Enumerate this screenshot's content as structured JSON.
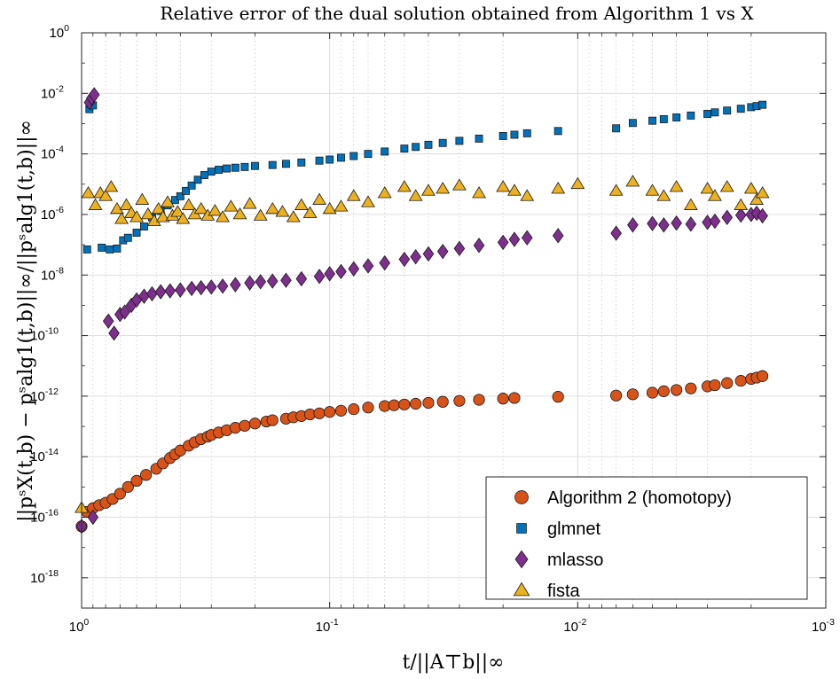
{
  "chart_data": {
    "type": "scatter",
    "title": "Relative error of the dual solution obtained from Algorithm 1 vs X",
    "xlabel": "t/||A⊤b||∞",
    "ylabel": "||pˢX(t,b) − pˢalg1(t,b)||∞/||pˢalg1(t,b)||∞",
    "x_scale": "log",
    "y_scale": "log",
    "x_reversed": true,
    "xlim": [
      1,
      0.001
    ],
    "ylim": [
      1e-19,
      1
    ],
    "grid": true,
    "legend_position": "bottom-right",
    "x_ticks": [
      {
        "base": "10",
        "exp": "0"
      },
      {
        "base": "10",
        "exp": "-1"
      },
      {
        "base": "10",
        "exp": "-2"
      },
      {
        "base": "10",
        "exp": "-3"
      }
    ],
    "y_ticks": [
      {
        "base": "10",
        "exp": "0"
      },
      {
        "base": "10",
        "exp": "-2"
      },
      {
        "base": "10",
        "exp": "-4"
      },
      {
        "base": "10",
        "exp": "-6"
      },
      {
        "base": "10",
        "exp": "-8"
      },
      {
        "base": "10",
        "exp": "-10"
      },
      {
        "base": "10",
        "exp": "-12"
      },
      {
        "base": "10",
        "exp": "-14"
      },
      {
        "base": "10",
        "exp": "-16"
      },
      {
        "base": "10",
        "exp": "-18"
      }
    ],
    "series": [
      {
        "name": "Algorithm 2 (homotopy)",
        "marker": "circle",
        "color": "#D95319",
        "points": [
          [
            1.0,
            5e-17
          ],
          [
            0.95,
            1.5e-16
          ],
          [
            0.9,
            2e-16
          ],
          [
            0.85,
            2.5e-16
          ],
          [
            0.8,
            3e-16
          ],
          [
            0.75,
            4e-16
          ],
          [
            0.7,
            6e-16
          ],
          [
            0.65,
            1e-15
          ],
          [
            0.6,
            1.6e-15
          ],
          [
            0.55,
            2.5e-15
          ],
          [
            0.5,
            4e-15
          ],
          [
            0.47,
            6e-15
          ],
          [
            0.44,
            9e-15
          ],
          [
            0.42,
            1.2e-14
          ],
          [
            0.4,
            1.6e-14
          ],
          [
            0.37,
            2.3e-14
          ],
          [
            0.35,
            3e-14
          ],
          [
            0.33,
            3.8e-14
          ],
          [
            0.31,
            4.6e-14
          ],
          [
            0.3,
            5.2e-14
          ],
          [
            0.28,
            6.3e-14
          ],
          [
            0.26,
            7.5e-14
          ],
          [
            0.24,
            9e-14
          ],
          [
            0.22,
            1.05e-13
          ],
          [
            0.2,
            1.25e-13
          ],
          [
            0.18,
            1.45e-13
          ],
          [
            0.17,
            1.6e-13
          ],
          [
            0.15,
            1.8e-13
          ],
          [
            0.14,
            2e-13
          ],
          [
            0.13,
            2.2e-13
          ],
          [
            0.12,
            2.5e-13
          ],
          [
            0.11,
            2.7e-13
          ],
          [
            0.1,
            3e-13
          ],
          [
            0.09,
            3.3e-13
          ],
          [
            0.08,
            3.7e-13
          ],
          [
            0.07,
            4.2e-13
          ],
          [
            0.06,
            4.7e-13
          ],
          [
            0.055,
            5e-13
          ],
          [
            0.05,
            5.3e-13
          ],
          [
            0.045,
            5.6e-13
          ],
          [
            0.04,
            6e-13
          ],
          [
            0.035,
            6.5e-13
          ],
          [
            0.03,
            7e-13
          ],
          [
            0.025,
            7.6e-13
          ],
          [
            0.02,
            8.3e-13
          ],
          [
            0.018,
            8.7e-13
          ],
          [
            0.012,
            9.5e-13
          ],
          [
            0.007,
            1.05e-12
          ],
          [
            0.006,
            1.15e-12
          ],
          [
            0.005,
            1.3e-12
          ],
          [
            0.0045,
            1.45e-12
          ],
          [
            0.004,
            1.6e-12
          ],
          [
            0.0035,
            1.8e-12
          ],
          [
            0.003,
            2.1e-12
          ],
          [
            0.0028,
            2.3e-12
          ],
          [
            0.0025,
            2.7e-12
          ],
          [
            0.0022,
            3.2e-12
          ],
          [
            0.002,
            3.7e-12
          ],
          [
            0.0019,
            4.1e-12
          ],
          [
            0.0018,
            4.6e-12
          ]
        ]
      },
      {
        "name": "glmnet",
        "marker": "square",
        "color": "#0072BD",
        "points": [
          [
            0.93,
            0.003
          ],
          [
            0.92,
            0.0045
          ],
          [
            0.9,
            0.004
          ],
          [
            0.95,
            7e-08
          ],
          [
            0.83,
            8e-08
          ],
          [
            0.77,
            7e-08
          ],
          [
            0.72,
            7.5e-08
          ],
          [
            0.68,
            1.4e-07
          ],
          [
            0.65,
            1.7e-07
          ],
          [
            0.6,
            2.5e-07
          ],
          [
            0.56,
            4e-07
          ],
          [
            0.52,
            8e-07
          ],
          [
            0.48,
            1.3e-06
          ],
          [
            0.45,
            2e-06
          ],
          [
            0.42,
            3e-06
          ],
          [
            0.4,
            4e-06
          ],
          [
            0.38,
            6e-06
          ],
          [
            0.36,
            9e-06
          ],
          [
            0.34,
            1.4e-05
          ],
          [
            0.32,
            2e-05
          ],
          [
            0.3,
            2.6e-05
          ],
          [
            0.28,
            3e-05
          ],
          [
            0.26,
            3.3e-05
          ],
          [
            0.24,
            3.5e-05
          ],
          [
            0.22,
            3.7e-05
          ],
          [
            0.2,
            4e-05
          ],
          [
            0.17,
            4.3e-05
          ],
          [
            0.15,
            4.7e-05
          ],
          [
            0.13,
            5.2e-05
          ],
          [
            0.11,
            6e-05
          ],
          [
            0.1,
            6.5e-05
          ],
          [
            0.09,
            7.5e-05
          ],
          [
            0.08,
            8.5e-05
          ],
          [
            0.07,
            0.0001
          ],
          [
            0.06,
            0.00012
          ],
          [
            0.05,
            0.00015
          ],
          [
            0.045,
            0.00017
          ],
          [
            0.04,
            0.0002
          ],
          [
            0.035,
            0.00023
          ],
          [
            0.03,
            0.00027
          ],
          [
            0.025,
            0.00032
          ],
          [
            0.02,
            0.00039
          ],
          [
            0.018,
            0.00043
          ],
          [
            0.016,
            0.00048
          ],
          [
            0.012,
            0.00057
          ],
          [
            0.007,
            0.0007
          ],
          [
            0.006,
            0.00105
          ],
          [
            0.005,
            0.00125
          ],
          [
            0.0045,
            0.0014
          ],
          [
            0.004,
            0.0016
          ],
          [
            0.0035,
            0.00185
          ],
          [
            0.003,
            0.0021
          ],
          [
            0.0028,
            0.00235
          ],
          [
            0.0025,
            0.0027
          ],
          [
            0.0022,
            0.0031
          ],
          [
            0.002,
            0.0035
          ],
          [
            0.0019,
            0.0038
          ],
          [
            0.0018,
            0.0042
          ]
        ]
      },
      {
        "name": "mlasso",
        "marker": "diamond",
        "color": "#7E2F8E",
        "points": [
          [
            1.0,
            5e-17
          ],
          [
            0.9,
            1e-16
          ],
          [
            0.93,
            0.005
          ],
          [
            0.91,
            0.007
          ],
          [
            0.89,
            0.009
          ],
          [
            0.78,
            3e-10
          ],
          [
            0.74,
            1.2e-10
          ],
          [
            0.7,
            5e-10
          ],
          [
            0.67,
            6e-10
          ],
          [
            0.63,
            1e-09
          ],
          [
            0.6,
            1.5e-09
          ],
          [
            0.56,
            2e-09
          ],
          [
            0.52,
            2.4e-09
          ],
          [
            0.48,
            2.8e-09
          ],
          [
            0.44,
            3e-09
          ],
          [
            0.4,
            3.2e-09
          ],
          [
            0.36,
            3.6e-09
          ],
          [
            0.33,
            3.8e-09
          ],
          [
            0.3,
            4e-09
          ],
          [
            0.27,
            4.3e-09
          ],
          [
            0.24,
            4.8e-09
          ],
          [
            0.21,
            5.5e-09
          ],
          [
            0.19,
            6e-09
          ],
          [
            0.17,
            6.3e-09
          ],
          [
            0.15,
            6.7e-09
          ],
          [
            0.13,
            7.5e-09
          ],
          [
            0.11,
            9e-09
          ],
          [
            0.1,
            1.1e-08
          ],
          [
            0.09,
            1.3e-08
          ],
          [
            0.08,
            1.6e-08
          ],
          [
            0.07,
            2e-08
          ],
          [
            0.06,
            2.5e-08
          ],
          [
            0.05,
            3.3e-08
          ],
          [
            0.045,
            4e-08
          ],
          [
            0.04,
            5e-08
          ],
          [
            0.035,
            6e-08
          ],
          [
            0.03,
            7.5e-08
          ],
          [
            0.025,
            9.5e-08
          ],
          [
            0.02,
            1.2e-07
          ],
          [
            0.018,
            1.5e-07
          ],
          [
            0.016,
            1.7e-07
          ],
          [
            0.012,
            2e-07
          ],
          [
            0.007,
            2.4e-07
          ],
          [
            0.006,
            4.5e-07
          ],
          [
            0.005,
            5e-07
          ],
          [
            0.0045,
            4.5e-07
          ],
          [
            0.004,
            5.2e-07
          ],
          [
            0.0035,
            4.8e-07
          ],
          [
            0.003,
            5.5e-07
          ],
          [
            0.0028,
            6e-07
          ],
          [
            0.0025,
            8e-07
          ],
          [
            0.0022,
            9.5e-07
          ],
          [
            0.002,
            1e-06
          ],
          [
            0.0019,
            1.1e-06
          ],
          [
            0.0018,
            9e-07
          ]
        ]
      },
      {
        "name": "fista",
        "marker": "triangle",
        "color": "#EDB120",
        "points": [
          [
            1.0,
            2e-16
          ],
          [
            0.94,
            5e-06
          ],
          [
            0.88,
            2e-06
          ],
          [
            0.84,
            5e-06
          ],
          [
            0.8,
            4e-06
          ],
          [
            0.76,
            8e-06
          ],
          [
            0.72,
            1.5e-06
          ],
          [
            0.69,
            7e-07
          ],
          [
            0.66,
            2e-06
          ],
          [
            0.63,
            1.1e-06
          ],
          [
            0.6,
            8e-07
          ],
          [
            0.57,
            3e-06
          ],
          [
            0.54,
            1e-06
          ],
          [
            0.51,
            6e-07
          ],
          [
            0.49,
            1.5e-06
          ],
          [
            0.47,
            8e-07
          ],
          [
            0.45,
            2.5e-06
          ],
          [
            0.43,
            9e-07
          ],
          [
            0.41,
            1.2e-06
          ],
          [
            0.39,
            7e-07
          ],
          [
            0.37,
            2e-06
          ],
          [
            0.35,
            1e-06
          ],
          [
            0.33,
            1.5e-06
          ],
          [
            0.31,
            9e-07
          ],
          [
            0.29,
            1.3e-06
          ],
          [
            0.27,
            8e-07
          ],
          [
            0.25,
            1.8e-06
          ],
          [
            0.23,
            1e-06
          ],
          [
            0.21,
            2.2e-06
          ],
          [
            0.19,
            9e-07
          ],
          [
            0.17,
            1.5e-06
          ],
          [
            0.155,
            1.2e-06
          ],
          [
            0.14,
            8e-07
          ],
          [
            0.13,
            2e-06
          ],
          [
            0.12,
            1.1e-06
          ],
          [
            0.11,
            3e-06
          ],
          [
            0.1,
            1.5e-06
          ],
          [
            0.09,
            1.8e-06
          ],
          [
            0.08,
            4e-06
          ],
          [
            0.07,
            2.5e-06
          ],
          [
            0.06,
            5e-06
          ],
          [
            0.05,
            8e-06
          ],
          [
            0.045,
            4e-06
          ],
          [
            0.04,
            6e-06
          ],
          [
            0.035,
            7e-06
          ],
          [
            0.03,
            9e-06
          ],
          [
            0.025,
            5e-06
          ],
          [
            0.02,
            8e-06
          ],
          [
            0.018,
            6e-06
          ],
          [
            0.016,
            4e-06
          ],
          [
            0.012,
            7e-06
          ],
          [
            0.01,
            1e-05
          ],
          [
            0.007,
            6e-06
          ],
          [
            0.006,
            1.2e-05
          ],
          [
            0.005,
            6e-06
          ],
          [
            0.0045,
            4e-06
          ],
          [
            0.004,
            8e-06
          ],
          [
            0.0035,
            2e-06
          ],
          [
            0.003,
            7e-06
          ],
          [
            0.0028,
            4e-06
          ],
          [
            0.0025,
            8e-06
          ],
          [
            0.0022,
            2e-06
          ],
          [
            0.002,
            7e-06
          ],
          [
            0.0019,
            3e-06
          ],
          [
            0.0018,
            5e-06
          ]
        ]
      }
    ]
  }
}
